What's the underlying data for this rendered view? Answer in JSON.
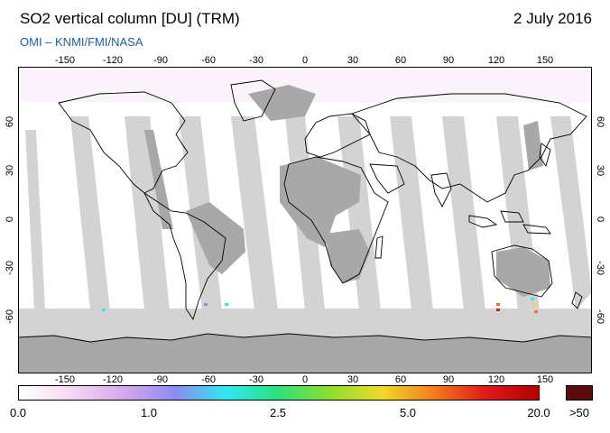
{
  "header": {
    "title": "SO2 vertical column [DU] (TRM)",
    "date": "2 July 2016",
    "credit": "OMI  –  KNMI/FMI/NASA"
  },
  "map": {
    "lon_ticks": [
      "-150",
      "-120",
      "-90",
      "-60",
      "-30",
      "0",
      "30",
      "60",
      "90",
      "120",
      "150"
    ],
    "lat_ticks": [
      "60",
      "30",
      "0",
      "-30",
      "-60"
    ],
    "lon_range": [
      -180,
      180
    ],
    "lat_range": [
      -90,
      90
    ],
    "colors": {
      "background": "#ffffff",
      "land_no_data": "#a8a8a8",
      "swath_gap": "#d3d3d3",
      "coastline": "#000000"
    }
  },
  "colorbar": {
    "labels": [
      "0.0",
      "1.0",
      "2.5",
      "5.0",
      "20.0"
    ],
    "overflow_label": ">50",
    "overflow_color": "#5a0a0a",
    "stops": [
      "#ffffff",
      "#f4d8f2",
      "#d9a9ee",
      "#8c8cf0",
      "#2ee8f0",
      "#2fe07a",
      "#8ee02c",
      "#f2d82a",
      "#f27a1e",
      "#e01818",
      "#b00000"
    ]
  }
}
